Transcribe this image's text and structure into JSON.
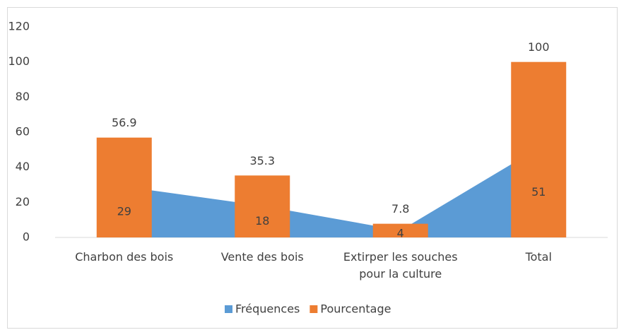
{
  "chart_data": {
    "type": "bar",
    "categories": [
      "Charbon des bois",
      "Vente des bois",
      "Extirper les souches pour la culture",
      "Total"
    ],
    "series": [
      {
        "name": "Fréquences",
        "type": "area",
        "color": "#5b9bd5",
        "values": [
          29,
          18,
          4,
          51
        ]
      },
      {
        "name": "Pourcentage",
        "type": "bar",
        "color": "#ed7d31",
        "values": [
          56.9,
          35.3,
          7.8,
          100
        ]
      }
    ],
    "ylim": [
      0,
      120
    ],
    "yticks": [
      0,
      20,
      40,
      60,
      80,
      100,
      120
    ],
    "grid": false,
    "legend": "bottom"
  }
}
